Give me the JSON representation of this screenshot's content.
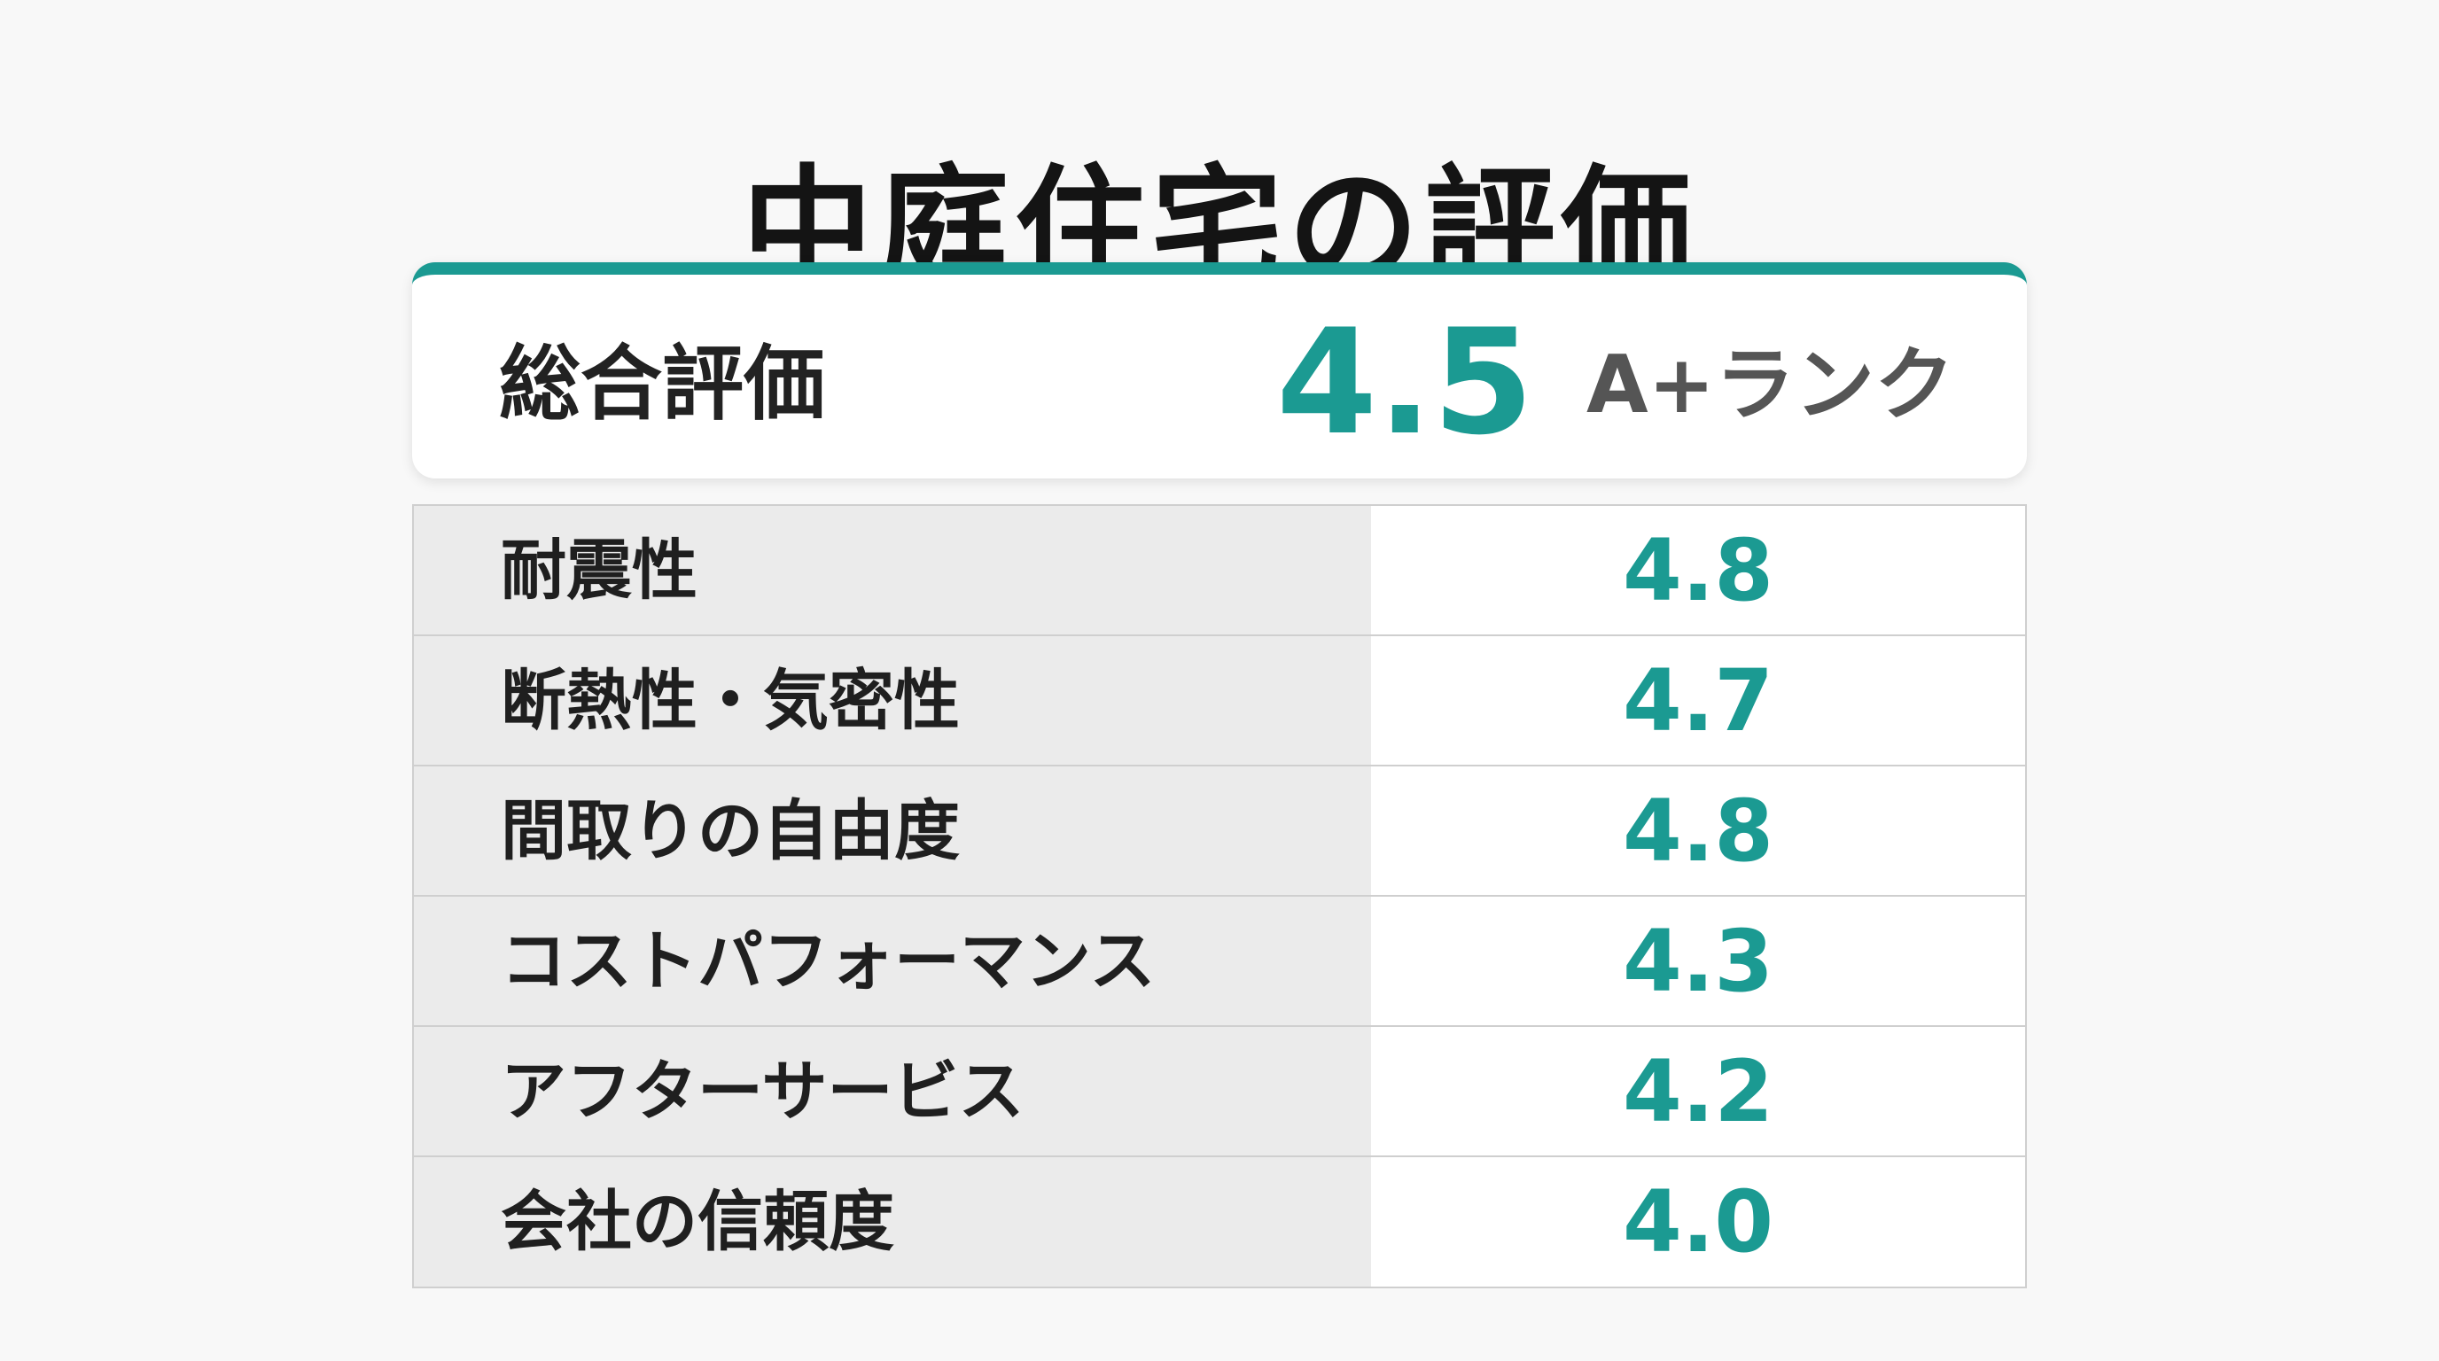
{
  "title": "中庭住宅の評価",
  "summary": {
    "label": "総合評価",
    "score": "4.5",
    "rank": "A+ランク"
  },
  "ratings": [
    {
      "label": "耐震性",
      "value": "4.8"
    },
    {
      "label": "断熱性・気密性",
      "value": "4.7"
    },
    {
      "label": "間取りの自由度",
      "value": "4.8"
    },
    {
      "label": "コストパフォーマンス",
      "value": "4.3"
    },
    {
      "label": "アフターサービス",
      "value": "4.2"
    },
    {
      "label": "会社の信頼度",
      "value": "4.0"
    }
  ],
  "colors": {
    "accent": "#1b9a92",
    "rank_text": "#555555",
    "label_cell_bg": "#ebebeb",
    "background": "#f8f8f8"
  }
}
